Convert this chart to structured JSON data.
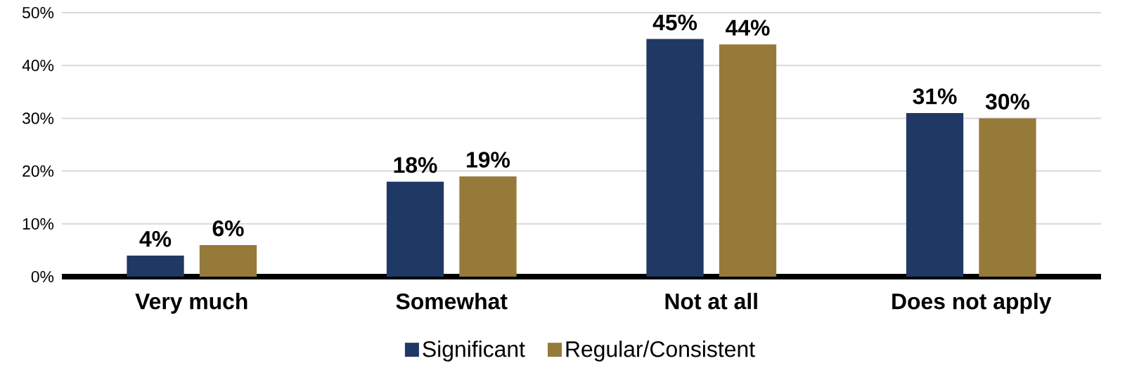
{
  "chart_data": {
    "type": "bar",
    "categories": [
      "Very much",
      "Somewhat",
      "Not at all",
      "Does not apply"
    ],
    "series": [
      {
        "name": "Significant",
        "color": "#203864",
        "values": [
          4,
          18,
          45,
          31
        ],
        "value_labels": [
          "4%",
          "18%",
          "45%",
          "31%"
        ]
      },
      {
        "name": "Regular/Consistent",
        "color": "#967a3a",
        "values": [
          6,
          19,
          44,
          30
        ],
        "value_labels": [
          "6%",
          "19%",
          "44%",
          "30%"
        ]
      }
    ],
    "ylim": [
      0,
      50
    ],
    "yticks": [
      {
        "value": 0,
        "label": "0%"
      },
      {
        "value": 10,
        "label": "10%"
      },
      {
        "value": 20,
        "label": "20%"
      },
      {
        "value": 30,
        "label": "30%"
      },
      {
        "value": 40,
        "label": "40%"
      },
      {
        "value": 50,
        "label": "50%"
      }
    ],
    "grid": "y",
    "legend": "bottom"
  }
}
